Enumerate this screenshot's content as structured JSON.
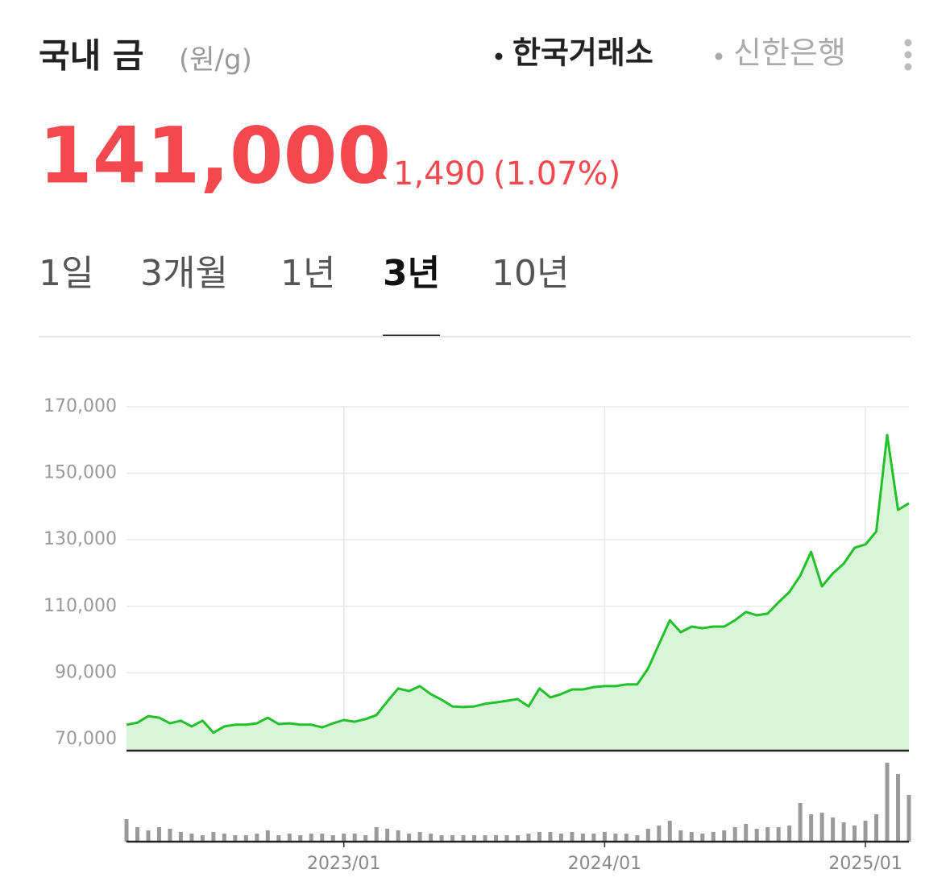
{
  "header": {
    "title": "국내 금",
    "unit": "(원/g)",
    "sources": [
      "한국거래소",
      "신한은행"
    ],
    "selected_source": 0,
    "price": "141,000",
    "change": "1,490",
    "change_pct": "(1.07%)"
  },
  "tabs": {
    "items": [
      "1일",
      "3개월",
      "1년",
      "3년",
      "10년"
    ],
    "selected": 3
  },
  "chart_data": {
    "type": "line",
    "categories": [
      null,
      null,
      null,
      null,
      null,
      null,
      null,
      null,
      null,
      null,
      null,
      null,
      null,
      null,
      null,
      null,
      null,
      null,
      null,
      null,
      "2023/01",
      null,
      null,
      null,
      null,
      null,
      null,
      null,
      null,
      null,
      null,
      null,
      null,
      null,
      null,
      null,
      null,
      null,
      null,
      null,
      null,
      null,
      null,
      null,
      "2024/01",
      null,
      null,
      null,
      null,
      null,
      null,
      null,
      null,
      null,
      null,
      null,
      null,
      null,
      null,
      null,
      null,
      null,
      null,
      null,
      null,
      null,
      null,
      null,
      "2025/01",
      null,
      null,
      null,
      null
    ],
    "series": [
      {
        "color": "#22c02a",
        "fill": "#d8f5d8",
        "values": [
          74400,
          75000,
          77000,
          76500,
          74800,
          75600,
          73900,
          75600,
          72000,
          73900,
          74400,
          74400,
          74800,
          76500,
          74600,
          74800,
          74400,
          74400,
          73600,
          74800,
          75800,
          75300,
          76100,
          77300,
          81400,
          85300,
          84500,
          86000,
          83600,
          81900,
          79900,
          79700,
          79900,
          80700,
          81100,
          81600,
          82100,
          79900,
          85300,
          82600,
          83600,
          85000,
          85000,
          85700,
          86000,
          86000,
          86500,
          86500,
          91300,
          98600,
          105800,
          102200,
          103900,
          103400,
          103900,
          103900,
          105800,
          108300,
          107300,
          107800,
          111200,
          114300,
          119200,
          126400,
          116000,
          119900,
          122800,
          127600,
          128600,
          132500,
          161500,
          139000,
          141000
        ]
      }
    ],
    "ylim": [
      66600,
      170000
    ],
    "yticks": [
      {
        "value": 70000,
        "label": "70,000"
      },
      {
        "value": 90000,
        "label": "90,000"
      },
      {
        "value": 110000,
        "label": "110,000"
      },
      {
        "value": 130000,
        "label": "130,000"
      },
      {
        "value": 150000,
        "label": "150,000"
      },
      {
        "value": 170000,
        "label": "170,000"
      }
    ],
    "grid": true,
    "volume": {
      "color": "#9a9a9a",
      "ylim": [
        0,
        100
      ],
      "values": [
        28,
        18,
        14,
        18,
        16,
        12,
        10,
        8,
        12,
        10,
        8,
        8,
        10,
        14,
        8,
        10,
        8,
        10,
        10,
        8,
        10,
        10,
        8,
        18,
        16,
        14,
        10,
        12,
        10,
        8,
        8,
        8,
        8,
        8,
        8,
        8,
        8,
        10,
        12,
        12,
        10,
        12,
        10,
        10,
        12,
        10,
        10,
        8,
        16,
        20,
        26,
        14,
        12,
        10,
        12,
        14,
        18,
        22,
        16,
        18,
        18,
        20,
        48,
        34,
        36,
        30,
        24,
        20,
        26,
        34,
        98,
        84,
        58
      ]
    }
  }
}
